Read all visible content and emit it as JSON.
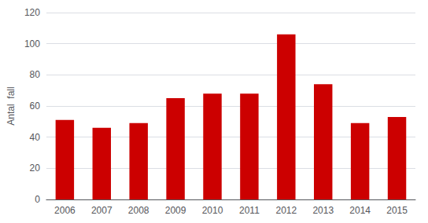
{
  "chart_data": {
    "type": "bar",
    "categories": [
      "2006",
      "2007",
      "2008",
      "2009",
      "2010",
      "2011",
      "2012",
      "2013",
      "2014",
      "2015"
    ],
    "values": [
      51,
      46,
      49,
      65,
      68,
      68,
      106,
      74,
      49,
      53
    ],
    "color": "#cc0000",
    "ylabel": "Antal  fall",
    "ylim": [
      0,
      120
    ],
    "yticks": [
      0,
      20,
      40,
      60,
      80,
      100,
      120
    ],
    "grid": true
  }
}
